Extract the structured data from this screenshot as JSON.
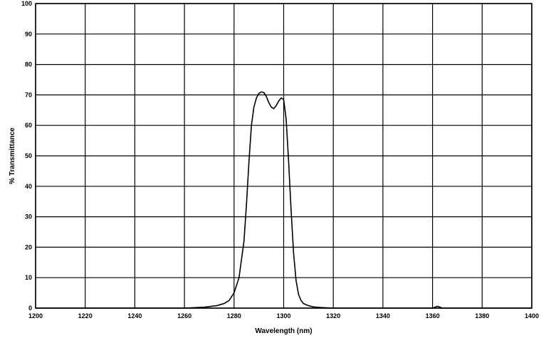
{
  "chart_data": {
    "type": "line",
    "title": "",
    "xlabel": "Wavelength (nm)",
    "ylabel": "% Transmittance",
    "xlim": [
      1200,
      1400
    ],
    "ylim": [
      0,
      100
    ],
    "grid": true,
    "x_ticks": [
      "1200",
      "1220",
      "1240",
      "1260",
      "1280",
      "1300",
      "1320",
      "1340",
      "1360",
      "1380",
      "1400"
    ],
    "y_ticks": [
      "0",
      "10",
      "20",
      "30",
      "40",
      "50",
      "60",
      "70",
      "80",
      "90",
      "100"
    ],
    "series": [
      {
        "x": [
          1200,
          1240,
          1260,
          1268,
          1273,
          1276,
          1278,
          1280,
          1282,
          1284,
          1285,
          1286,
          1287,
          1288,
          1289,
          1290,
          1291,
          1292,
          1293,
          1294,
          1295,
          1296,
          1297,
          1298,
          1299,
          1300,
          1301,
          1302,
          1303,
          1304,
          1305,
          1306,
          1307,
          1308,
          1310,
          1312,
          1315,
          1320,
          1360,
          1362,
          1364,
          1400
        ],
        "y": [
          0,
          0,
          0,
          0.3,
          0.8,
          1.5,
          2.5,
          5,
          10,
          22,
          34,
          48,
          60,
          66,
          69,
          70.5,
          71,
          70.8,
          69.5,
          67.5,
          66,
          65.5,
          66.5,
          68,
          69,
          68.5,
          62,
          48,
          32,
          18,
          9,
          4.5,
          2.5,
          1.5,
          0.8,
          0.4,
          0.2,
          0,
          0,
          0.6,
          0,
          0
        ]
      }
    ]
  }
}
